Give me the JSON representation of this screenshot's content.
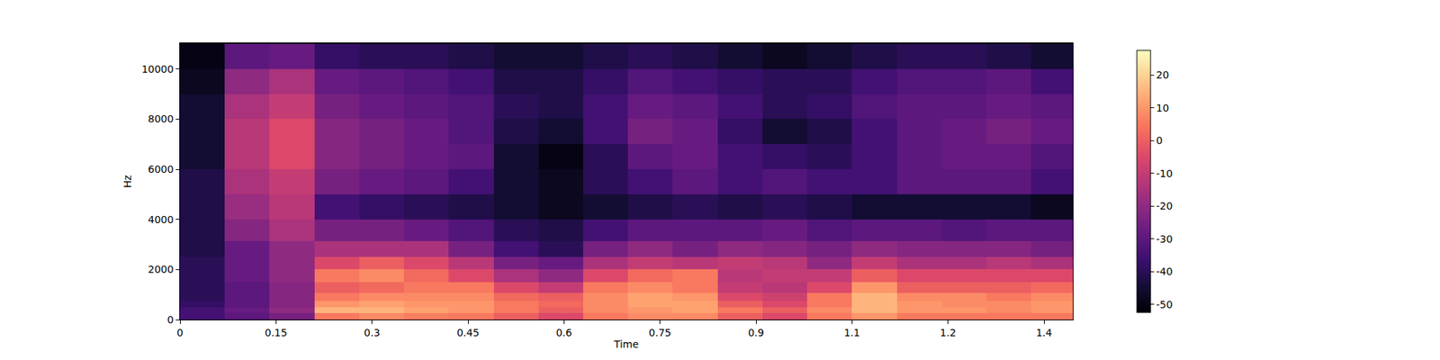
{
  "chart_data": {
    "type": "heatmap",
    "xlabel": "Time",
    "ylabel": "Hz",
    "x": [
      0.035,
      0.105,
      0.175,
      0.245,
      0.315,
      0.385,
      0.455,
      0.525,
      0.595,
      0.665,
      0.735,
      0.805,
      0.875,
      0.945,
      1.015,
      1.085,
      1.155,
      1.225,
      1.295,
      1.365
    ],
    "y": [
      125,
      375,
      625,
      875,
      1250,
      1750,
      2250,
      2750,
      3500,
      4500,
      5500,
      6500,
      7500,
      8500,
      9500,
      10500
    ],
    "z": [
      [
        -35,
        -30,
        -25,
        5,
        8,
        6,
        5,
        0,
        -5,
        5,
        8,
        8,
        0,
        -5,
        5,
        10,
        5,
        5,
        5,
        5
      ],
      [
        -35,
        -28,
        -20,
        15,
        15,
        12,
        10,
        5,
        0,
        8,
        10,
        12,
        5,
        0,
        8,
        15,
        10,
        10,
        8,
        10
      ],
      [
        -38,
        -30,
        -22,
        10,
        12,
        10,
        10,
        5,
        2,
        8,
        12,
        12,
        0,
        -5,
        5,
        15,
        10,
        8,
        8,
        10
      ],
      [
        -40,
        -30,
        -22,
        5,
        8,
        8,
        8,
        2,
        0,
        8,
        12,
        10,
        -5,
        -8,
        5,
        15,
        8,
        8,
        5,
        8
      ],
      [
        -40,
        -30,
        -22,
        0,
        2,
        5,
        5,
        -5,
        -10,
        5,
        8,
        5,
        -10,
        -12,
        -5,
        10,
        0,
        0,
        0,
        2
      ],
      [
        -40,
        -28,
        -20,
        5,
        8,
        2,
        -5,
        -15,
        -20,
        -5,
        2,
        5,
        -12,
        -10,
        -10,
        0,
        -5,
        -5,
        -5,
        -5
      ],
      [
        -40,
        -28,
        -20,
        -5,
        0,
        -5,
        -12,
        -25,
        -28,
        -15,
        -10,
        -12,
        -10,
        -12,
        -20,
        -10,
        -15,
        -15,
        -12,
        -15
      ],
      [
        -42,
        -28,
        -20,
        -15,
        -15,
        -15,
        -25,
        -35,
        -40,
        -25,
        -20,
        -25,
        -20,
        -22,
        -25,
        -20,
        -22,
        -22,
        -22,
        -25
      ],
      [
        -42,
        -22,
        -15,
        -25,
        -25,
        -28,
        -32,
        -40,
        -42,
        -35,
        -30,
        -30,
        -30,
        -28,
        -32,
        -30,
        -30,
        -32,
        -30,
        -30
      ],
      [
        -42,
        -18,
        -12,
        -35,
        -38,
        -40,
        -42,
        -45,
        -48,
        -45,
        -42,
        -40,
        -42,
        -40,
        -42,
        -45,
        -45,
        -45,
        -45,
        -48
      ],
      [
        -42,
        -15,
        -10,
        -25,
        -28,
        -30,
        -35,
        -45,
        -48,
        -40,
        -35,
        -30,
        -35,
        -32,
        -35,
        -35,
        -30,
        -30,
        -30,
        -35
      ],
      [
        -45,
        -12,
        -5,
        -22,
        -25,
        -28,
        -30,
        -45,
        -50,
        -40,
        -30,
        -28,
        -35,
        -38,
        -40,
        -35,
        -30,
        -28,
        -28,
        -32
      ],
      [
        -45,
        -12,
        -5,
        -22,
        -25,
        -28,
        -32,
        -42,
        -45,
        -35,
        -25,
        -28,
        -38,
        -45,
        -42,
        -35,
        -30,
        -28,
        -25,
        -28
      ],
      [
        -45,
        -15,
        -10,
        -25,
        -28,
        -30,
        -32,
        -40,
        -42,
        -35,
        -28,
        -30,
        -35,
        -40,
        -38,
        -32,
        -30,
        -30,
        -28,
        -30
      ],
      [
        -48,
        -20,
        -15,
        -28,
        -30,
        -32,
        -35,
        -42,
        -42,
        -38,
        -32,
        -35,
        -38,
        -40,
        -40,
        -35,
        -32,
        -32,
        -30,
        -35
      ],
      [
        -50,
        -30,
        -28,
        -38,
        -40,
        -40,
        -42,
        -45,
        -45,
        -42,
        -40,
        -42,
        -45,
        -48,
        -45,
        -42,
        -40,
        -40,
        -42,
        -45
      ]
    ],
    "xlim": [
      0,
      1.395
    ],
    "xticks": [
      0,
      0.15,
      0.3,
      0.45,
      0.6,
      0.75,
      0.9,
      {
        "value": 1.05,
        "label": "1.1"
      },
      1.2,
      {
        "value": 1.35,
        "label": "1.4"
      }
    ],
    "ylim": [
      0,
      11025
    ],
    "yticks": [
      0,
      2000,
      4000,
      6000,
      8000,
      10000
    ],
    "colorbar": {
      "range": [
        -52.5,
        27.5
      ],
      "ticks": [
        -50,
        -40,
        -30,
        -20,
        -10,
        0,
        10,
        20
      ]
    }
  }
}
